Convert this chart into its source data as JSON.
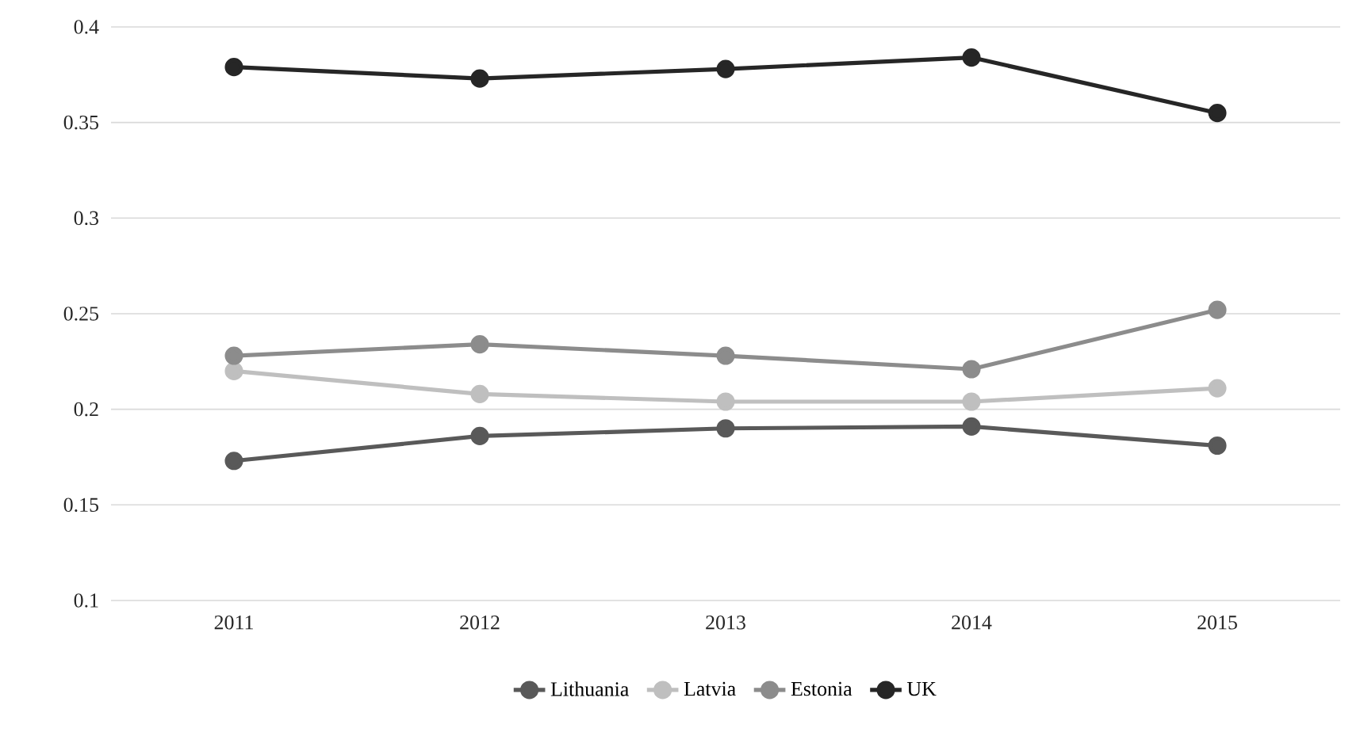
{
  "chart_data": {
    "type": "line",
    "categories": [
      "2011",
      "2012",
      "2013",
      "2014",
      "2015"
    ],
    "series": [
      {
        "name": "Lithuania",
        "color": "#595959",
        "values": [
          0.173,
          0.186,
          0.19,
          0.191,
          0.181
        ]
      },
      {
        "name": "Latvia",
        "color": "#bfbfbf",
        "values": [
          0.22,
          0.208,
          0.204,
          0.204,
          0.211
        ]
      },
      {
        "name": "Estonia",
        "color": "#8c8c8c",
        "values": [
          0.228,
          0.234,
          0.228,
          0.221,
          0.252
        ]
      },
      {
        "name": "UK",
        "color": "#262626",
        "values": [
          0.379,
          0.373,
          0.378,
          0.384,
          0.355
        ]
      }
    ],
    "ylim": [
      0.1,
      0.4
    ],
    "yticks": [
      0.1,
      0.15,
      0.2,
      0.25,
      0.3,
      0.35,
      0.4
    ],
    "grid": "y",
    "legend": "bottom",
    "marker": "circle",
    "line_style": "solid"
  }
}
